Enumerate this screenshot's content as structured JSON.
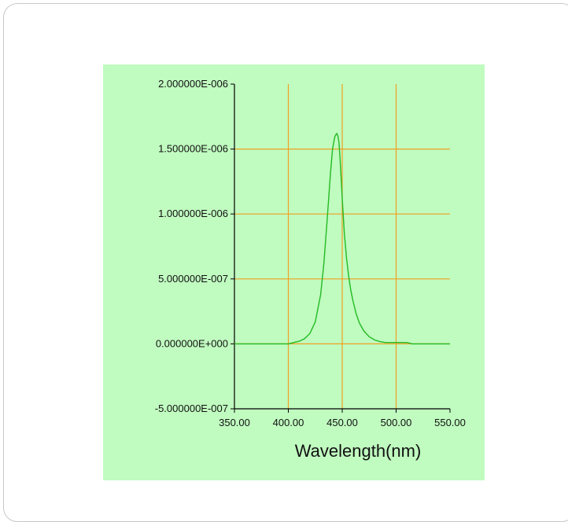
{
  "colors": {
    "panel_background": "#c0fbc0",
    "grid": "#f0a020",
    "series": "#22bb22",
    "axis": "#000000"
  },
  "chart_data": {
    "type": "line",
    "xlabel": "Wavelength(nm)",
    "ylabel": "",
    "xlim": [
      350,
      550
    ],
    "ylim": [
      -5e-07,
      2e-06
    ],
    "grid": true,
    "x_ticks": [
      350,
      400,
      450,
      500,
      550
    ],
    "x_tick_labels": [
      "350.00",
      "400.00",
      "450.00",
      "500.00",
      "550.00"
    ],
    "y_ticks": [
      -5e-07,
      0,
      5e-07,
      1e-06,
      1.5e-06,
      2e-06
    ],
    "y_tick_labels": [
      "-5.000000E-007",
      "0.000000E+000",
      "5.000000E-007",
      "1.000000E-006",
      "1.500000E-006",
      "2.000000E-006"
    ],
    "series": [
      {
        "name": "",
        "x": [
          350,
          400,
          405,
          410,
          415,
          420,
          425,
          430,
          433,
          436,
          439,
          441,
          443,
          444,
          445,
          446,
          447,
          448,
          449,
          450,
          452,
          454,
          456,
          458,
          460,
          463,
          466,
          470,
          475,
          480,
          485,
          490,
          495,
          500,
          505,
          510,
          515,
          520,
          550
        ],
        "y": [
          0,
          0,
          1e-08,
          2e-08,
          4e-08,
          8e-08,
          1.7e-07,
          3.8e-07,
          6.2e-07,
          9.5e-07,
          1.3e-06,
          1.5e-06,
          1.59e-06,
          1.61e-06,
          1.62e-06,
          1.6e-06,
          1.55e-06,
          1.42e-06,
          1.28e-06,
          1.12e-06,
          8.5e-07,
          6.6e-07,
          5.2e-07,
          4.1e-07,
          3.3e-07,
          2.3e-07,
          1.6e-07,
          1e-07,
          5.5e-08,
          3e-08,
          1.7e-08,
          1e-08,
          1e-08,
          1e-08,
          1e-08,
          1e-08,
          0,
          0,
          0
        ]
      }
    ]
  }
}
